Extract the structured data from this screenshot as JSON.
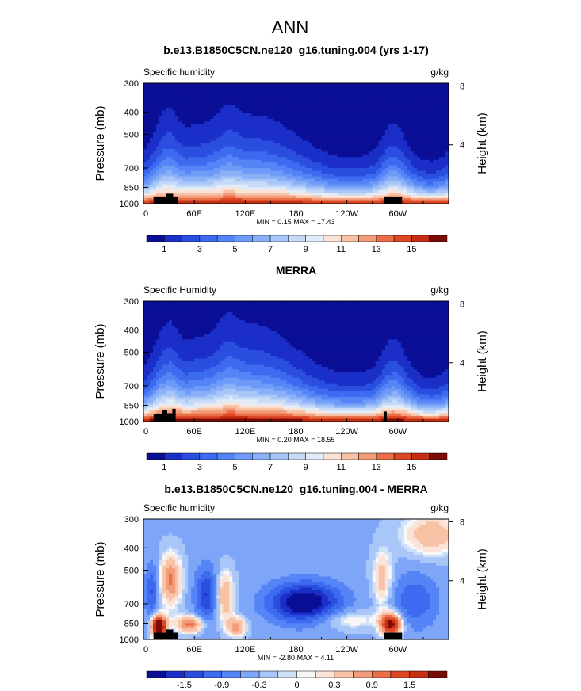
{
  "figure": {
    "main_title": "ANN"
  },
  "chart_data": [
    {
      "type": "heatmap",
      "title": "b.e13.B1850C5CN.ne120_g16.tuning.004 (yrs 1-17)",
      "left_label": "Specific humidity",
      "units_label": "g/kg",
      "ylabel": "Pressure (mb)",
      "ylabel_right": "Height (km)",
      "y_ticks": [
        "300",
        "400",
        "500",
        "700",
        "850",
        "1000"
      ],
      "y_tick_values": [
        300,
        400,
        500,
        700,
        850,
        1000
      ],
      "right_ticks": [
        "8",
        "4"
      ],
      "right_tick_values": [
        8,
        4
      ],
      "x_ticks": [
        "0",
        "60E",
        "120E",
        "180",
        "120W",
        "60W"
      ],
      "x_tick_values": [
        0,
        60,
        120,
        180,
        240,
        300
      ],
      "xlim": [
        0,
        360
      ],
      "ylim": [
        1000,
        300
      ],
      "minmax_text": "MIN =    0.15  MAX =   17.43",
      "min": 0.15,
      "max": 17.43,
      "colorbar_labels": [
        "1",
        "3",
        "5",
        "7",
        "9",
        "11",
        "13",
        "15"
      ],
      "levels": [
        1,
        2,
        3,
        4,
        5,
        6,
        7,
        8,
        9,
        10,
        11,
        12,
        13,
        14,
        15,
        16
      ],
      "colors": [
        "#0a0f96",
        "#1b2fc8",
        "#2a4fe0",
        "#3d6bf0",
        "#5584f6",
        "#6e9bf8",
        "#8ab1f8",
        "#a8c6f8",
        "#c6daf8",
        "#e2ecf9",
        "#fbe3d8",
        "#f8c2a6",
        "#f39c79",
        "#ea6e47",
        "#de4724",
        "#c52e10",
        "#7a0b05"
      ],
      "mode": "q_model"
    },
    {
      "type": "heatmap",
      "title": "MERRA",
      "left_label": "Specific Humidity",
      "units_label": "g/kg",
      "ylabel": "Pressure (mb)",
      "ylabel_right": "Height (km)",
      "y_ticks": [
        "300",
        "400",
        "500",
        "700",
        "850",
        "1000"
      ],
      "y_tick_values": [
        300,
        400,
        500,
        700,
        850,
        1000
      ],
      "right_ticks": [
        "8",
        "4"
      ],
      "right_tick_values": [
        8,
        4
      ],
      "x_ticks": [
        "0",
        "60E",
        "120E",
        "180",
        "120W",
        "60W"
      ],
      "x_tick_values": [
        0,
        60,
        120,
        180,
        240,
        300
      ],
      "xlim": [
        0,
        360
      ],
      "ylim": [
        1000,
        300
      ],
      "minmax_text": "MIN =    0.20  MAX =   18.55",
      "min": 0.2,
      "max": 18.55,
      "colorbar_labels": [
        "1",
        "3",
        "5",
        "7",
        "9",
        "11",
        "13",
        "15"
      ],
      "levels": [
        1,
        2,
        3,
        4,
        5,
        6,
        7,
        8,
        9,
        10,
        11,
        12,
        13,
        14,
        15,
        16
      ],
      "colors": [
        "#0a0f96",
        "#1b2fc8",
        "#2a4fe0",
        "#3d6bf0",
        "#5584f6",
        "#6e9bf8",
        "#8ab1f8",
        "#a8c6f8",
        "#c6daf8",
        "#e2ecf9",
        "#fbe3d8",
        "#f8c2a6",
        "#f39c79",
        "#ea6e47",
        "#de4724",
        "#c52e10",
        "#7a0b05"
      ],
      "mode": "q_obs"
    },
    {
      "type": "heatmap",
      "title": "b.e13.B1850C5CN.ne120_g16.tuning.004 - MERRA",
      "left_label": "Specific humidity",
      "units_label": "g/kg",
      "ylabel": "Pressure (mb)",
      "ylabel_right": "Height (km)",
      "y_ticks": [
        "300",
        "400",
        "500",
        "700",
        "850",
        "1000"
      ],
      "y_tick_values": [
        300,
        400,
        500,
        700,
        850,
        1000
      ],
      "right_ticks": [
        "8",
        "4"
      ],
      "right_tick_values": [
        8,
        4
      ],
      "x_ticks": [
        "0",
        "60E",
        "120E",
        "180",
        "120W",
        "60W"
      ],
      "x_tick_values": [
        0,
        60,
        120,
        180,
        240,
        300
      ],
      "xlim": [
        0,
        360
      ],
      "ylim": [
        1000,
        300
      ],
      "minmax_text": "MIN =   -2.80  MAX =    4.11",
      "min": -2.8,
      "max": 4.11,
      "colorbar_labels": [
        "-1.5",
        "-0.9",
        "-0.3",
        "0",
        "0.3",
        "0.9",
        "1.5"
      ],
      "levels": [
        -1.8,
        -1.5,
        -1.2,
        -0.9,
        -0.6,
        -0.3,
        -0.1,
        0,
        0.1,
        0.3,
        0.6,
        0.9,
        1.2,
        1.5,
        1.8
      ],
      "colors": [
        "#0a0f96",
        "#1b2fc8",
        "#2a4fe0",
        "#3d6bf0",
        "#5584f6",
        "#7ea6f8",
        "#a8c6f8",
        "#cfe0f9",
        "#f7f7f7",
        "#fbe3d8",
        "#f8c2a6",
        "#f39c79",
        "#ea6e47",
        "#de4724",
        "#c52e10",
        "#7a0b05"
      ],
      "mode": "diff"
    }
  ]
}
